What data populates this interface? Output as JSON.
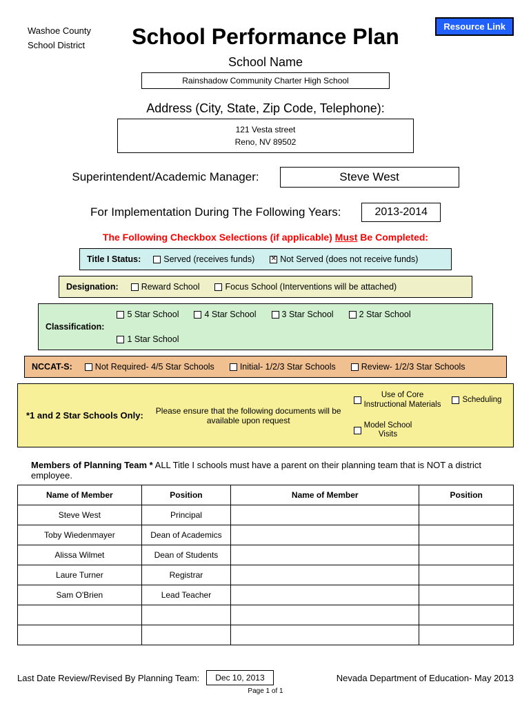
{
  "header": {
    "county_line1": "Washoe County",
    "county_line2": "School District",
    "resource_link": "Resource Link"
  },
  "title": "School Performance Plan",
  "school_name_label": "School Name",
  "school_name": "Rainshadow Community Charter High School",
  "address_label": "Address (City, State, Zip Code, Telephone):",
  "address_line1": "121 Vesta street",
  "address_line2": "Reno, NV 89502",
  "superintendent_label": "Superintendent/Academic Manager:",
  "superintendent_name": "Steve West",
  "years_label": "For Implementation During The Following Years:",
  "years_value": "2013-2014",
  "red_note_prefix": "The Following Checkbox Selections (if applicable) ",
  "red_note_underlined": "Must",
  "red_note_suffix": " Be Completed:",
  "bands": {
    "title1": {
      "label": "Title I Status:",
      "options": [
        {
          "label": "Served  (receives funds)",
          "checked": false
        },
        {
          "label": "Not Served  (does not receive funds)",
          "checked": true
        }
      ],
      "bg": "#d0f0f0"
    },
    "designation": {
      "label": "Designation:",
      "options": [
        {
          "label": "Reward School",
          "checked": false
        },
        {
          "label": "Focus School   (Interventions will be attached)",
          "checked": false
        }
      ],
      "bg": "#f0f0c8"
    },
    "classification": {
      "label": "Classification:",
      "options": [
        {
          "label": "5 Star School",
          "checked": false
        },
        {
          "label": "4 Star School",
          "checked": false
        },
        {
          "label": "3 Star School",
          "checked": false
        },
        {
          "label": "2 Star School",
          "checked": false
        },
        {
          "label": "1 Star School",
          "checked": false
        }
      ],
      "bg": "#d0f0d0"
    },
    "nccats": {
      "label": "NCCAT-S:",
      "options": [
        {
          "label": "Not Required- 4/5 Star Schools",
          "checked": false
        },
        {
          "label": "Initial- 1/2/3 Star Schools",
          "checked": false
        },
        {
          "label": "Review- 1/2/3 Star Schools",
          "checked": false
        }
      ],
      "bg": "#f0c090"
    },
    "star": {
      "label": "*1 and 2 Star Schools Only:",
      "msg_line1": "Please ensure that the following documents will be",
      "msg_line2": "available upon request",
      "options": [
        {
          "label_l1": "Use of Core",
          "label_l2": "Instructional Materials",
          "checked": false
        },
        {
          "label_l1": "Scheduling",
          "label_l2": "",
          "checked": false
        },
        {
          "label_l1": "Model School",
          "label_l2": "Visits",
          "checked": false
        }
      ],
      "bg": "#f8f098"
    }
  },
  "members_heading_bold": "Members of Planning Team *",
  "members_heading_rest": " ALL Title I schools must have a parent on their planning team that is NOT a district employee.",
  "members_table": {
    "columns": [
      "Name of Member",
      "Position",
      "Name of Member",
      "Position"
    ],
    "rows": [
      [
        "Steve West",
        "Principal",
        "",
        ""
      ],
      [
        "Toby Wiedenmayer",
        "Dean of Academics",
        "",
        ""
      ],
      [
        "Alissa Wilmet",
        "Dean of Students",
        "",
        ""
      ],
      [
        "Laure Turner",
        "Registrar",
        "",
        ""
      ],
      [
        "Sam O'Brien",
        "Lead Teacher",
        "",
        ""
      ],
      [
        "",
        "",
        "",
        ""
      ],
      [
        "",
        "",
        "",
        ""
      ]
    ]
  },
  "footer": {
    "rev_label": "Last Date Review/Revised By Planning Team:",
    "rev_date": "Dec 10, 2013",
    "dept": "Nevada Department of Education- May 2013",
    "page": "Page 1 of 1"
  }
}
